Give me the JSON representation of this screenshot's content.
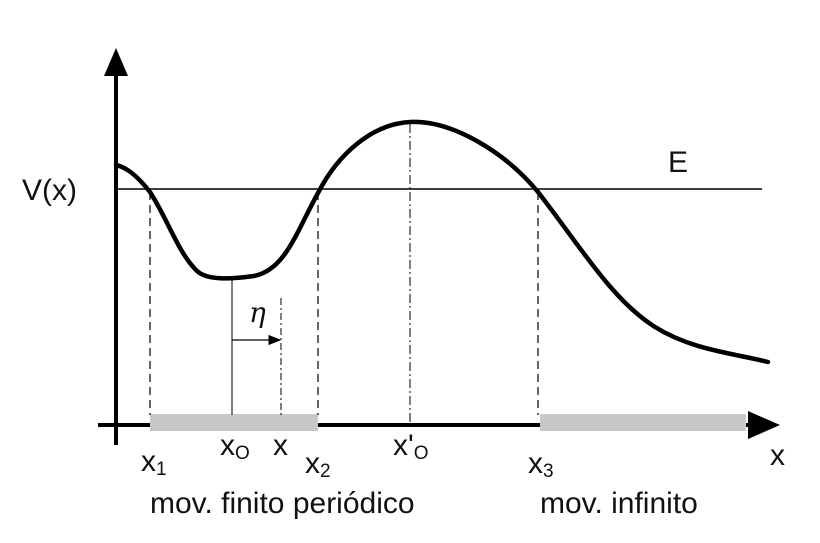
{
  "diagram": {
    "y_axis_label": "V(x)",
    "x_axis_label": "x",
    "energy_label": "E",
    "points": [
      {
        "main": "x",
        "sub": "1"
      },
      {
        "main": "x",
        "sub": "O"
      },
      {
        "main": "x",
        "sub": ""
      },
      {
        "main": "x",
        "sub": "2"
      },
      {
        "main": "x'",
        "sub": "O"
      },
      {
        "main": "x",
        "sub": "3"
      }
    ],
    "displacement_label": "η",
    "region_labels": {
      "finite": "mov. finito periódico",
      "infinite": "mov. infinito"
    },
    "colors": {
      "curve": "#000000",
      "lines": "#000000",
      "region_bar": "#c8c8c8"
    }
  }
}
